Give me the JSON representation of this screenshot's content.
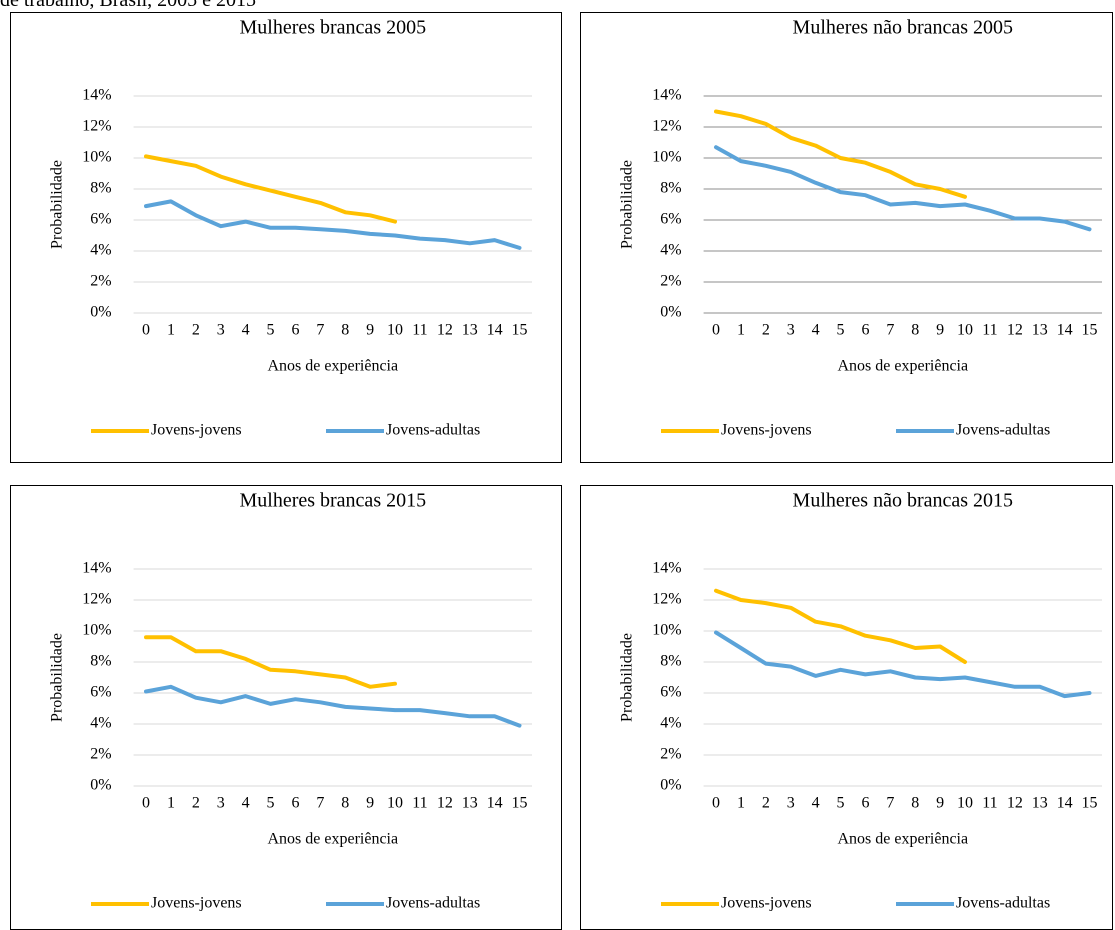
{
  "caption": "de trabalho, Brasil, 2005 e 2015",
  "chart_data": [
    {
      "type": "line",
      "title": "Mulheres brancas 2005",
      "x_label": "Anos de experiência",
      "y_label": "Probabilidade",
      "categories": [
        "0",
        "1",
        "2",
        "3",
        "4",
        "5",
        "6",
        "7",
        "8",
        "9",
        "10",
        "11",
        "12",
        "13",
        "14",
        "15"
      ],
      "series": [
        {
          "name": "Jovens-jovens",
          "color": "#FFC000",
          "values": [
            10.1,
            9.8,
            9.5,
            8.8,
            8.3,
            7.9,
            7.5,
            7.1,
            6.5,
            6.3,
            5.9,
            null,
            null,
            null,
            null,
            null
          ]
        },
        {
          "name": "Jovens-adultas",
          "color": "#5BA3D9",
          "values": [
            6.9,
            7.2,
            6.3,
            5.6,
            5.9,
            5.5,
            5.5,
            5.4,
            5.3,
            5.1,
            5.0,
            4.8,
            4.7,
            4.5,
            4.7,
            4.2
          ]
        }
      ],
      "ylim": [
        0,
        14
      ],
      "yticks": [
        {
          "value": 0,
          "label": "0%"
        },
        {
          "value": 2,
          "label": "2%"
        },
        {
          "value": 4,
          "label": "4%"
        },
        {
          "value": 6,
          "label": "6%"
        },
        {
          "value": 8,
          "label": "8%"
        },
        {
          "value": 10,
          "label": "10%"
        },
        {
          "value": 12,
          "label": "12%"
        },
        {
          "value": 14,
          "label": "14%"
        }
      ],
      "grid": true,
      "grid_color": "#d9d9d9",
      "legend": "bottom"
    },
    {
      "type": "line",
      "title": "Mulheres não brancas 2005",
      "x_label": "Anos de experiência",
      "y_label": "Probabilidade",
      "categories": [
        "0",
        "1",
        "2",
        "3",
        "4",
        "5",
        "6",
        "7",
        "8",
        "9",
        "10",
        "11",
        "12",
        "13",
        "14",
        "15"
      ],
      "series": [
        {
          "name": "Jovens-jovens",
          "color": "#FFC000",
          "values": [
            13.0,
            12.7,
            12.2,
            11.3,
            10.8,
            10.0,
            9.7,
            9.1,
            8.3,
            8.0,
            7.5,
            null,
            null,
            null,
            null,
            null
          ]
        },
        {
          "name": "Jovens-adultas",
          "color": "#5BA3D9",
          "values": [
            10.7,
            9.8,
            9.5,
            9.1,
            8.4,
            7.8,
            7.6,
            7.0,
            7.1,
            6.9,
            7.0,
            6.6,
            6.1,
            6.1,
            5.9,
            5.4
          ]
        }
      ],
      "ylim": [
        0,
        14
      ],
      "yticks": [
        {
          "value": 0,
          "label": "0%"
        },
        {
          "value": 2,
          "label": "2%"
        },
        {
          "value": 4,
          "label": "4%"
        },
        {
          "value": 6,
          "label": "6%"
        },
        {
          "value": 8,
          "label": "8%"
        },
        {
          "value": 10,
          "label": "10%"
        },
        {
          "value": 12,
          "label": "12%"
        },
        {
          "value": 14,
          "label": "14%"
        }
      ],
      "grid": true,
      "grid_color": "#8c8c8c",
      "legend": "bottom"
    },
    {
      "type": "line",
      "title": "Mulheres brancas 2015",
      "x_label": "Anos de experiência",
      "y_label": "Probabilidade",
      "categories": [
        "0",
        "1",
        "2",
        "3",
        "4",
        "5",
        "6",
        "7",
        "8",
        "9",
        "10",
        "11",
        "12",
        "13",
        "14",
        "15"
      ],
      "series": [
        {
          "name": "Jovens-jovens",
          "color": "#FFC000",
          "values": [
            9.6,
            9.6,
            8.7,
            8.7,
            8.2,
            7.5,
            7.4,
            7.2,
            7.0,
            6.4,
            6.6,
            null,
            null,
            null,
            null,
            null
          ]
        },
        {
          "name": "Jovens-adultas",
          "color": "#5BA3D9",
          "values": [
            6.1,
            6.4,
            5.7,
            5.4,
            5.8,
            5.3,
            5.6,
            5.4,
            5.1,
            5.0,
            4.9,
            4.9,
            4.7,
            4.5,
            4.5,
            3.9
          ]
        }
      ],
      "ylim": [
        0,
        14
      ],
      "yticks": [
        {
          "value": 0,
          "label": "0%"
        },
        {
          "value": 2,
          "label": "2%"
        },
        {
          "value": 4,
          "label": "4%"
        },
        {
          "value": 6,
          "label": "6%"
        },
        {
          "value": 8,
          "label": "8%"
        },
        {
          "value": 10,
          "label": "10%"
        },
        {
          "value": 12,
          "label": "12%"
        },
        {
          "value": 14,
          "label": "14%"
        }
      ],
      "grid": true,
      "grid_color": "#d9d9d9",
      "legend": "bottom"
    },
    {
      "type": "line",
      "title": "Mulheres não brancas 2015",
      "x_label": "Anos de experiência",
      "y_label": "Probabilidade",
      "categories": [
        "0",
        "1",
        "2",
        "3",
        "4",
        "5",
        "6",
        "7",
        "8",
        "9",
        "10",
        "11",
        "12",
        "13",
        "14",
        "15"
      ],
      "series": [
        {
          "name": "Jovens-jovens",
          "color": "#FFC000",
          "values": [
            12.6,
            12.0,
            11.8,
            11.5,
            10.6,
            10.3,
            9.7,
            9.4,
            8.9,
            9.0,
            8.0,
            null,
            null,
            null,
            null,
            null
          ]
        },
        {
          "name": "Jovens-adultas",
          "color": "#5BA3D9",
          "values": [
            9.9,
            8.9,
            7.9,
            7.7,
            7.1,
            7.5,
            7.2,
            7.4,
            7.0,
            6.9,
            7.0,
            6.7,
            6.4,
            6.4,
            5.8,
            6.0
          ]
        }
      ],
      "ylim": [
        0,
        14
      ],
      "yticks": [
        {
          "value": 0,
          "label": "0%"
        },
        {
          "value": 2,
          "label": "2%"
        },
        {
          "value": 4,
          "label": "4%"
        },
        {
          "value": 6,
          "label": "6%"
        },
        {
          "value": 8,
          "label": "8%"
        },
        {
          "value": 10,
          "label": "10%"
        },
        {
          "value": 12,
          "label": "12%"
        },
        {
          "value": 14,
          "label": "14%"
        }
      ],
      "grid": true,
      "grid_color": "#d9d9d9",
      "legend": "bottom"
    }
  ]
}
